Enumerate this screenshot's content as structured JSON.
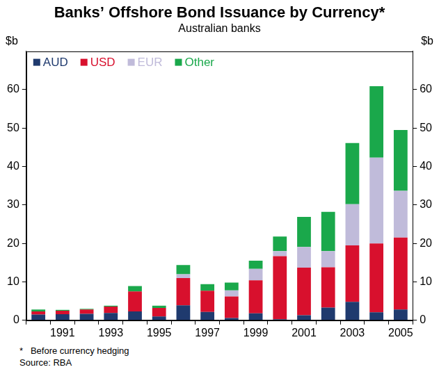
{
  "chart_data": {
    "type": "bar",
    "title": "Banks’ Offshore Bond Issuance by Currency*",
    "subtitle": "Australian banks",
    "ylabel": "$b",
    "y2label": "$b",
    "notes": [
      "*   Before currency hedging",
      "Source: RBA"
    ],
    "categories": [
      null,
      "1991",
      null,
      "1993",
      null,
      "1995",
      null,
      "1997",
      null,
      "1999",
      null,
      "2001",
      null,
      "2003",
      null,
      "2005"
    ],
    "series": [
      {
        "name": "AUD",
        "color": "#1f3a6e",
        "values": [
          1.5,
          1.6,
          1.7,
          1.9,
          2.3,
          1.0,
          3.9,
          2.2,
          0.6,
          1.8,
          0.3,
          1.3,
          3.3,
          4.8,
          2.1,
          2.8
        ]
      },
      {
        "name": "USD",
        "color": "#d8102d",
        "values": [
          0.8,
          0.9,
          1.1,
          1.7,
          5.2,
          2.2,
          7.1,
          5.5,
          5.6,
          8.6,
          16.4,
          12.4,
          10.5,
          14.7,
          17.9,
          18.7
        ]
      },
      {
        "name": "EUR",
        "color": "#c0bbda",
        "values": [
          0,
          0,
          0,
          0,
          0,
          0,
          1.0,
          0,
          1.6,
          3.0,
          1.3,
          5.4,
          4.2,
          10.7,
          22.3,
          12.2
        ]
      },
      {
        "name": "Other",
        "color": "#1aa84b",
        "values": [
          0.5,
          0.2,
          0.2,
          0.2,
          1.4,
          0.6,
          2.4,
          1.7,
          2.0,
          2.1,
          3.8,
          7.8,
          10.2,
          15.9,
          18.6,
          15.8
        ]
      }
    ],
    "stacked": true,
    "grid": false,
    "legend": "upper left",
    "ylim": [
      0,
      70
    ],
    "yticks": [
      0,
      10,
      20,
      30,
      40,
      50,
      60
    ],
    "y2lim": [
      0,
      70
    ],
    "y2ticks": [
      0,
      10,
      20,
      30,
      40,
      50,
      60
    ]
  }
}
